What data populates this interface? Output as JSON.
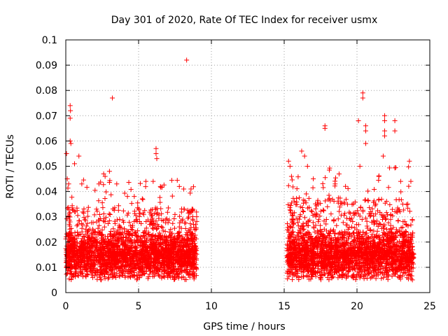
{
  "chart_data": {
    "type": "scatter",
    "title": "Day 301 of 2020, Rate Of TEC Index for receiver usmx",
    "xlabel": "GPS time / hours",
    "ylabel": "ROTI / TECUs",
    "xlim": [
      0,
      25
    ],
    "ylim": [
      0,
      0.1
    ],
    "xticks": [
      "0",
      "5",
      "10",
      "15",
      "20",
      "25"
    ],
    "yticks": [
      "0",
      "0.01",
      "0.02",
      "0.03",
      "0.04",
      "0.05",
      "0.06",
      "0.07",
      "0.08",
      "0.09",
      "0.1"
    ],
    "grid": true,
    "marker": "+",
    "color": "#ff0000",
    "series": [
      {
        "clusters": [
          {
            "x_range": [
              0.0,
              9.0
            ],
            "y_typical": [
              0.005,
              0.025
            ],
            "y_max_common": 0.045
          },
          {
            "x_range": [
              15.2,
              23.9
            ],
            "y_typical": [
              0.005,
              0.025
            ],
            "y_max_common": 0.05
          }
        ],
        "points": [
          [
            0.05,
            0.055
          ],
          [
            0.3,
            0.074
          ],
          [
            0.32,
            0.072
          ],
          [
            0.3,
            0.069
          ],
          [
            0.3,
            0.06
          ],
          [
            0.35,
            0.059
          ],
          [
            0.1,
            0.045
          ],
          [
            0.2,
            0.043
          ],
          [
            0.6,
            0.051
          ],
          [
            0.9,
            0.054
          ],
          [
            1.1,
            0.043
          ],
          [
            2.6,
            0.047
          ],
          [
            2.7,
            0.046
          ],
          [
            3.2,
            0.077
          ],
          [
            3.0,
            0.048
          ],
          [
            3.5,
            0.043
          ],
          [
            5.5,
            0.044
          ],
          [
            6.2,
            0.057
          ],
          [
            6.2,
            0.055
          ],
          [
            6.25,
            0.053
          ],
          [
            6.0,
            0.044
          ],
          [
            6.5,
            0.042
          ],
          [
            8.3,
            0.092
          ],
          [
            7.8,
            0.042
          ],
          [
            8.1,
            0.041
          ],
          [
            8.6,
            0.041
          ],
          [
            15.3,
            0.052
          ],
          [
            15.4,
            0.05
          ],
          [
            15.5,
            0.046
          ],
          [
            16.2,
            0.056
          ],
          [
            16.4,
            0.054
          ],
          [
            16.6,
            0.05
          ],
          [
            17.0,
            0.045
          ],
          [
            17.8,
            0.066
          ],
          [
            17.8,
            0.065
          ],
          [
            18.5,
            0.043
          ],
          [
            20.1,
            0.068
          ],
          [
            20.4,
            0.079
          ],
          [
            20.4,
            0.077
          ],
          [
            20.6,
            0.066
          ],
          [
            20.6,
            0.064
          ],
          [
            20.6,
            0.059
          ],
          [
            20.2,
            0.05
          ],
          [
            21.5,
            0.046
          ],
          [
            21.9,
            0.07
          ],
          [
            21.9,
            0.068
          ],
          [
            21.9,
            0.064
          ],
          [
            21.9,
            0.062
          ],
          [
            21.8,
            0.054
          ],
          [
            22.6,
            0.068
          ],
          [
            22.6,
            0.064
          ],
          [
            23.6,
            0.052
          ],
          [
            23.0,
            0.044
          ],
          [
            23.7,
            0.044
          ]
        ]
      }
    ]
  }
}
